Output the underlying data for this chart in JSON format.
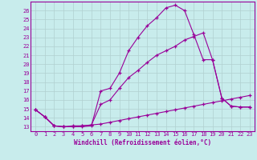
{
  "xlabel": "Windchill (Refroidissement éolien,°C)",
  "bg_color": "#c8ecec",
  "line_color": "#990099",
  "grid_color": "#b0d0d0",
  "xlim": [
    -0.5,
    23.5
  ],
  "ylim": [
    12.5,
    27.0
  ],
  "yticks": [
    13,
    14,
    15,
    16,
    17,
    18,
    19,
    20,
    21,
    22,
    23,
    24,
    25,
    26
  ],
  "xticks": [
    0,
    1,
    2,
    3,
    4,
    5,
    6,
    7,
    8,
    9,
    10,
    11,
    12,
    13,
    14,
    15,
    16,
    17,
    18,
    19,
    20,
    21,
    22,
    23
  ],
  "curve1_x": [
    0,
    1,
    2,
    3,
    4,
    5,
    6,
    7,
    8,
    9,
    10,
    11,
    12,
    13,
    14,
    15,
    16,
    17,
    18,
    19,
    20,
    21,
    22,
    23
  ],
  "curve1_y": [
    14.9,
    14.1,
    13.1,
    13.0,
    13.0,
    13.0,
    13.1,
    17.0,
    17.3,
    19.0,
    21.5,
    23.0,
    24.3,
    25.2,
    26.3,
    26.6,
    26.0,
    23.3,
    20.5,
    20.5,
    16.2,
    15.3,
    15.2,
    15.2
  ],
  "curve2_x": [
    0,
    1,
    2,
    3,
    4,
    5,
    6,
    7,
    8,
    9,
    10,
    11,
    12,
    13,
    14,
    15,
    16,
    17,
    18,
    19,
    20,
    21,
    22,
    23
  ],
  "curve2_y": [
    14.9,
    14.1,
    13.1,
    13.0,
    13.1,
    13.1,
    13.2,
    15.5,
    16.0,
    17.3,
    18.5,
    19.3,
    20.2,
    21.0,
    21.5,
    22.0,
    22.7,
    23.1,
    23.5,
    20.5,
    16.2,
    15.3,
    15.2,
    15.2
  ],
  "curve3_x": [
    0,
    1,
    2,
    3,
    4,
    5,
    6,
    7,
    8,
    9,
    10,
    11,
    12,
    13,
    14,
    15,
    16,
    17,
    18,
    19,
    20,
    21,
    22,
    23
  ],
  "curve3_y": [
    14.9,
    14.1,
    13.1,
    13.0,
    13.0,
    13.1,
    13.2,
    13.3,
    13.5,
    13.7,
    13.9,
    14.1,
    14.3,
    14.5,
    14.7,
    14.9,
    15.1,
    15.3,
    15.5,
    15.7,
    15.9,
    16.1,
    16.3,
    16.5
  ]
}
